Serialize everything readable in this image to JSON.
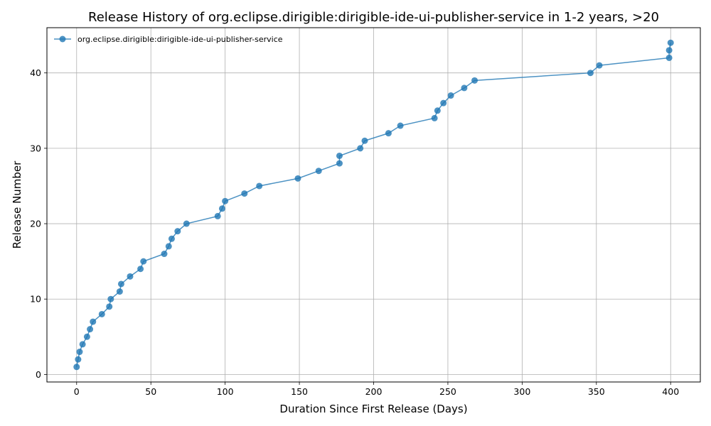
{
  "chart_data": {
    "type": "line",
    "title": "Release History of org.eclipse.dirigible:dirigible-ide-ui-publisher-service in 1-2 years, >20",
    "xlabel": "Duration Since First Release (Days)",
    "ylabel": "Release Number",
    "xlim": [
      -20,
      420
    ],
    "ylim": [
      -1,
      46
    ],
    "xticks": [
      0,
      50,
      100,
      150,
      200,
      250,
      300,
      350,
      400
    ],
    "yticks": [
      0,
      10,
      20,
      30,
      40
    ],
    "grid": true,
    "legend_position": "top-left",
    "series": [
      {
        "name": "org.eclipse.dirigible:dirigible-ide-ui-publisher-service",
        "color": "#1f77b4",
        "marker": "circle",
        "x": [
          0,
          1,
          2,
          4,
          7,
          9,
          11,
          17,
          22,
          23,
          29,
          30,
          36,
          43,
          45,
          59,
          62,
          64,
          68,
          74,
          95,
          98,
          100,
          113,
          123,
          149,
          163,
          177,
          177,
          191,
          194,
          210,
          218,
          241,
          243,
          247,
          252,
          261,
          268,
          346,
          352,
          399,
          399,
          400
        ],
        "y": [
          1,
          2,
          3,
          4,
          5,
          6,
          7,
          8,
          9,
          10,
          11,
          12,
          13,
          14,
          15,
          16,
          17,
          18,
          19,
          20,
          21,
          22,
          23,
          24,
          25,
          26,
          27,
          28,
          29,
          30,
          31,
          32,
          33,
          34,
          35,
          36,
          37,
          38,
          39,
          40,
          41,
          42,
          43,
          44
        ]
      }
    ]
  }
}
